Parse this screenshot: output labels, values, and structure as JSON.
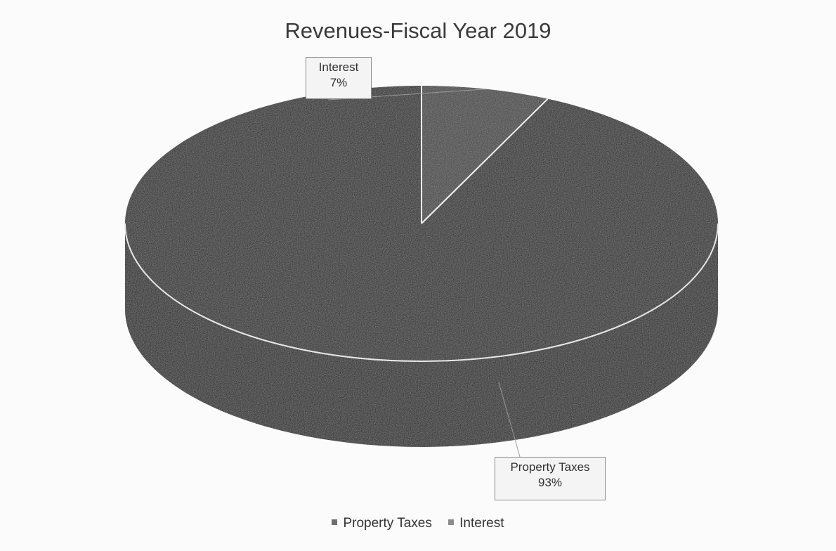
{
  "chart_data": {
    "type": "pie",
    "title": "Revenues-Fiscal Year 2019",
    "categories": [
      "Property Taxes",
      "Interest"
    ],
    "values": [
      93,
      7
    ],
    "data_labels": [
      {
        "category": "Property Taxes",
        "percent": "93%"
      },
      {
        "category": "Interest",
        "percent": "7%"
      }
    ],
    "legend": {
      "position": "bottom",
      "entries": [
        "Property Taxes",
        "Interest"
      ]
    },
    "colors": {
      "Property Taxes": "#1e1e1e",
      "Interest": "#3c3c3c"
    },
    "style": "3d"
  }
}
